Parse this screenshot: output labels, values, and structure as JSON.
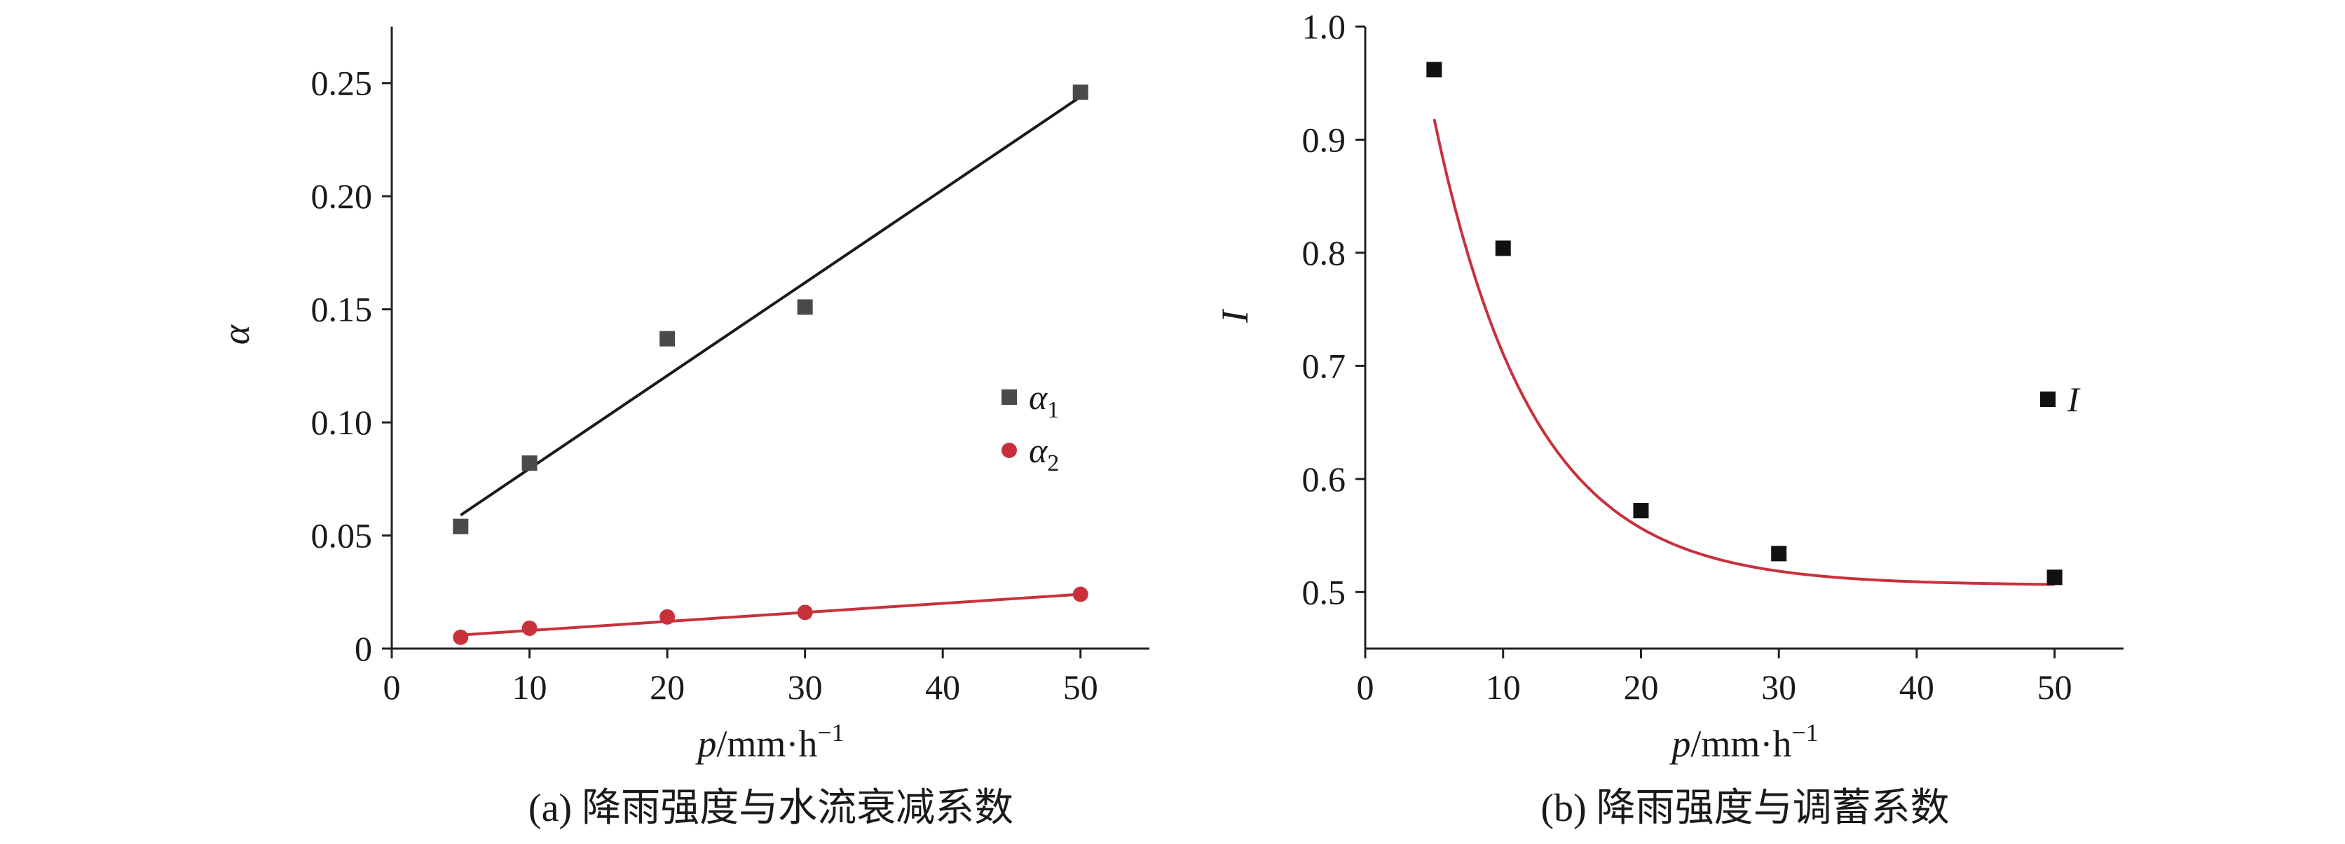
{
  "chart_data": [
    {
      "type": "scatter",
      "panel": "a",
      "caption": "(a) 降雨强度与水流衰减系数",
      "xlabel": {
        "var": "p",
        "unit": "/mm·h",
        "sup": "−1"
      },
      "ylabel": "α",
      "xlim": [
        0,
        55
      ],
      "ylim": [
        0,
        0.275
      ],
      "xticks": [
        "0",
        "10",
        "20",
        "30",
        "40",
        "50"
      ],
      "yticks": [
        "0",
        "0.05",
        "0.10",
        "0.15",
        "0.20",
        "0.25"
      ],
      "grid": false,
      "legend_position": "right",
      "series": [
        {
          "name": "α",
          "subscript": "1",
          "marker": "square",
          "color": "#4a4a4a",
          "line_color": "#1a1a1a",
          "x": [
            5,
            10,
            20,
            30,
            50
          ],
          "y": [
            0.054,
            0.082,
            0.137,
            0.151,
            0.246
          ],
          "fit": {
            "type": "linear",
            "x": [
              5,
              50
            ],
            "y": [
              0.059,
              0.244
            ]
          }
        },
        {
          "name": "α",
          "subscript": "2",
          "marker": "circle",
          "color": "#c8313c",
          "line_color": "#c8313c",
          "x": [
            5,
            10,
            20,
            30,
            50
          ],
          "y": [
            0.005,
            0.009,
            0.014,
            0.016,
            0.024
          ],
          "fit": {
            "type": "linear",
            "x": [
              5,
              50
            ],
            "y": [
              0.006,
              0.024
            ]
          }
        }
      ]
    },
    {
      "type": "scatter",
      "panel": "b",
      "caption": "(b) 降雨强度与调蓄系数",
      "xlabel": {
        "var": "p",
        "unit": "/mm·h",
        "sup": "−1"
      },
      "ylabel": "I",
      "xlim": [
        0,
        55
      ],
      "ylim": [
        0.45,
        1.0
      ],
      "xticks": [
        "0",
        "10",
        "20",
        "30",
        "40",
        "50"
      ],
      "yticks": [
        "0.5",
        "0.6",
        "0.7",
        "0.8",
        "0.9",
        "1.0"
      ],
      "grid": false,
      "legend_position": "right",
      "series": [
        {
          "name": "I",
          "marker": "square",
          "color": "#111111",
          "line_color": "#c8313c",
          "x": [
            5,
            10,
            20,
            30,
            50
          ],
          "y": [
            0.962,
            0.804,
            0.572,
            0.534,
            0.513
          ],
          "fit": {
            "type": "exponential",
            "a": 0.506,
            "b": 0.83,
            "c": 0.14,
            "x_range": [
              5,
              50
            ]
          }
        }
      ]
    }
  ]
}
